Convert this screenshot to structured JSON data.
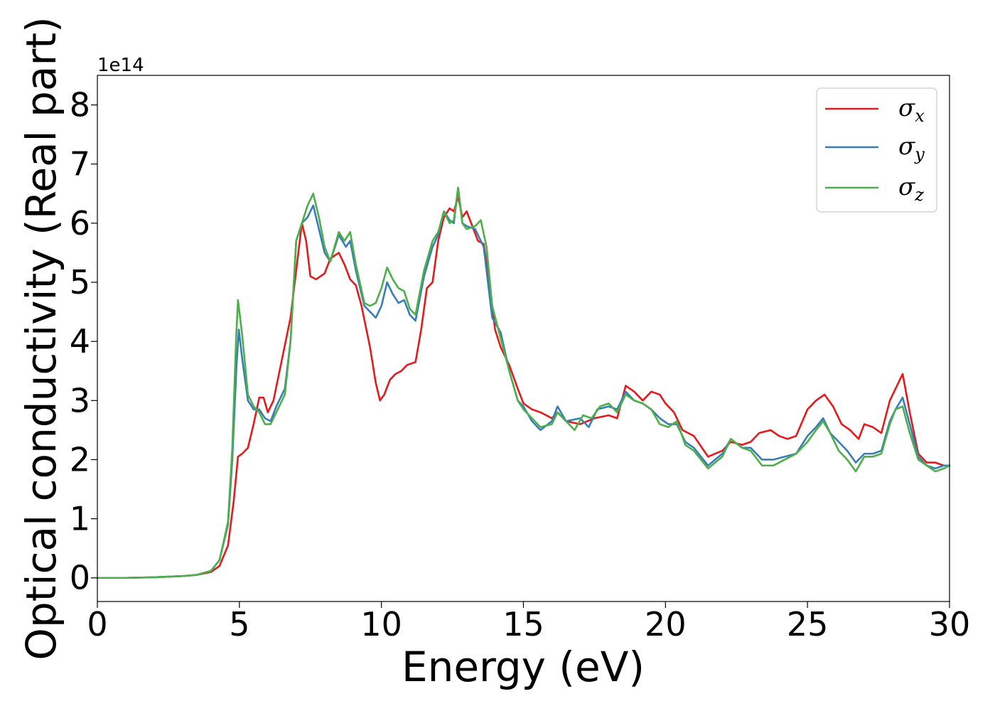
{
  "chart_data": {
    "type": "line",
    "xlabel": "Energy (eV)",
    "ylabel": "Optical conductivity (Real part)",
    "offset_text": "1e14",
    "xlim": [
      0,
      30
    ],
    "ylim": [
      -0.4,
      8.5
    ],
    "x_ticks": [
      0,
      5,
      10,
      15,
      20,
      25,
      30
    ],
    "y_ticks": [
      0,
      1,
      2,
      3,
      4,
      5,
      6,
      7,
      8
    ],
    "grid": false,
    "legend_position": "top-right",
    "series": [
      {
        "name": "σx",
        "base": "σ",
        "sub": "x",
        "color": "#e41a1c",
        "points": [
          [
            0,
            0
          ],
          [
            1,
            0
          ],
          [
            2,
            0.01
          ],
          [
            3,
            0.03
          ],
          [
            3.5,
            0.05
          ],
          [
            4,
            0.1
          ],
          [
            4.3,
            0.2
          ],
          [
            4.6,
            0.55
          ],
          [
            4.8,
            1.3
          ],
          [
            4.95,
            2.05
          ],
          [
            5.1,
            2.1
          ],
          [
            5.3,
            2.2
          ],
          [
            5.5,
            2.6
          ],
          [
            5.7,
            3.05
          ],
          [
            5.85,
            3.05
          ],
          [
            6,
            2.8
          ],
          [
            6.2,
            3.0
          ],
          [
            6.5,
            3.7
          ],
          [
            6.8,
            4.4
          ],
          [
            7.0,
            5.2
          ],
          [
            7.2,
            6.0
          ],
          [
            7.35,
            5.7
          ],
          [
            7.5,
            5.1
          ],
          [
            7.7,
            5.05
          ],
          [
            7.85,
            5.1
          ],
          [
            8.0,
            5.15
          ],
          [
            8.2,
            5.4
          ],
          [
            8.5,
            5.5
          ],
          [
            8.7,
            5.3
          ],
          [
            8.9,
            5.05
          ],
          [
            9.1,
            4.95
          ],
          [
            9.3,
            4.6
          ],
          [
            9.6,
            3.9
          ],
          [
            9.8,
            3.3
          ],
          [
            9.95,
            3.0
          ],
          [
            10.1,
            3.1
          ],
          [
            10.3,
            3.35
          ],
          [
            10.5,
            3.45
          ],
          [
            10.7,
            3.5
          ],
          [
            10.9,
            3.6
          ],
          [
            11.2,
            3.65
          ],
          [
            11.4,
            4.2
          ],
          [
            11.6,
            4.9
          ],
          [
            11.8,
            5.0
          ],
          [
            12.0,
            5.7
          ],
          [
            12.2,
            6.1
          ],
          [
            12.4,
            6.25
          ],
          [
            12.55,
            6.2
          ],
          [
            12.7,
            6.45
          ],
          [
            12.85,
            6.1
          ],
          [
            13.0,
            6.2
          ],
          [
            13.2,
            5.95
          ],
          [
            13.4,
            5.7
          ],
          [
            13.6,
            5.65
          ],
          [
            13.8,
            5.0
          ],
          [
            14.0,
            4.2
          ],
          [
            14.2,
            3.9
          ],
          [
            14.5,
            3.6
          ],
          [
            14.8,
            3.2
          ],
          [
            15.0,
            2.95
          ],
          [
            15.3,
            2.85
          ],
          [
            15.6,
            2.8
          ],
          [
            16.0,
            2.7
          ],
          [
            16.2,
            2.8
          ],
          [
            16.5,
            2.65
          ],
          [
            17.0,
            2.6
          ],
          [
            17.5,
            2.7
          ],
          [
            18.0,
            2.75
          ],
          [
            18.3,
            2.7
          ],
          [
            18.6,
            3.25
          ],
          [
            18.9,
            3.15
          ],
          [
            19.2,
            3.0
          ],
          [
            19.5,
            3.15
          ],
          [
            19.8,
            3.1
          ],
          [
            20.0,
            2.95
          ],
          [
            20.3,
            2.8
          ],
          [
            20.6,
            2.5
          ],
          [
            21.0,
            2.4
          ],
          [
            21.5,
            2.05
          ],
          [
            22.0,
            2.15
          ],
          [
            22.3,
            2.3
          ],
          [
            22.7,
            2.25
          ],
          [
            23.0,
            2.3
          ],
          [
            23.3,
            2.45
          ],
          [
            23.7,
            2.5
          ],
          [
            24.0,
            2.4
          ],
          [
            24.3,
            2.35
          ],
          [
            24.6,
            2.4
          ],
          [
            25.0,
            2.85
          ],
          [
            25.3,
            3.0
          ],
          [
            25.6,
            3.1
          ],
          [
            25.9,
            2.9
          ],
          [
            26.2,
            2.6
          ],
          [
            26.5,
            2.5
          ],
          [
            26.8,
            2.35
          ],
          [
            27.0,
            2.6
          ],
          [
            27.3,
            2.55
          ],
          [
            27.6,
            2.45
          ],
          [
            27.9,
            3.0
          ],
          [
            28.1,
            3.2
          ],
          [
            28.35,
            3.45
          ],
          [
            28.6,
            2.8
          ],
          [
            28.9,
            2.1
          ],
          [
            29.2,
            1.95
          ],
          [
            29.5,
            1.95
          ],
          [
            29.8,
            1.9
          ],
          [
            30,
            1.9
          ]
        ]
      },
      {
        "name": "σy",
        "base": "σ",
        "sub": "y",
        "color": "#377eb8",
        "points": [
          [
            0,
            0
          ],
          [
            1,
            0
          ],
          [
            2,
            0.01
          ],
          [
            3,
            0.03
          ],
          [
            3.5,
            0.05
          ],
          [
            4,
            0.12
          ],
          [
            4.3,
            0.3
          ],
          [
            4.6,
            0.9
          ],
          [
            4.75,
            2.0
          ],
          [
            4.9,
            3.6
          ],
          [
            4.98,
            4.2
          ],
          [
            5.1,
            3.7
          ],
          [
            5.3,
            3.0
          ],
          [
            5.5,
            2.85
          ],
          [
            5.7,
            2.85
          ],
          [
            5.9,
            2.7
          ],
          [
            6.1,
            2.65
          ],
          [
            6.3,
            2.9
          ],
          [
            6.6,
            3.2
          ],
          [
            6.8,
            4.0
          ],
          [
            7.0,
            5.7
          ],
          [
            7.2,
            6.0
          ],
          [
            7.4,
            6.1
          ],
          [
            7.6,
            6.3
          ],
          [
            7.8,
            5.9
          ],
          [
            8.0,
            5.5
          ],
          [
            8.2,
            5.35
          ],
          [
            8.5,
            5.8
          ],
          [
            8.75,
            5.6
          ],
          [
            8.9,
            5.7
          ],
          [
            9.1,
            5.2
          ],
          [
            9.4,
            4.6
          ],
          [
            9.6,
            4.5
          ],
          [
            9.8,
            4.4
          ],
          [
            10.0,
            4.6
          ],
          [
            10.2,
            5.0
          ],
          [
            10.4,
            4.8
          ],
          [
            10.6,
            4.65
          ],
          [
            10.8,
            4.7
          ],
          [
            11.0,
            4.45
          ],
          [
            11.2,
            4.35
          ],
          [
            11.5,
            5.1
          ],
          [
            11.8,
            5.6
          ],
          [
            12.0,
            5.8
          ],
          [
            12.2,
            6.2
          ],
          [
            12.4,
            6.05
          ],
          [
            12.55,
            6.0
          ],
          [
            12.7,
            6.6
          ],
          [
            12.85,
            6.0
          ],
          [
            13.0,
            5.95
          ],
          [
            13.3,
            5.9
          ],
          [
            13.6,
            5.6
          ],
          [
            13.9,
            4.4
          ],
          [
            14.2,
            4.15
          ],
          [
            14.5,
            3.5
          ],
          [
            14.8,
            3.0
          ],
          [
            15.0,
            2.9
          ],
          [
            15.3,
            2.65
          ],
          [
            15.6,
            2.5
          ],
          [
            16.0,
            2.65
          ],
          [
            16.2,
            2.9
          ],
          [
            16.5,
            2.65
          ],
          [
            17.0,
            2.7
          ],
          [
            17.3,
            2.55
          ],
          [
            17.6,
            2.85
          ],
          [
            18.0,
            2.9
          ],
          [
            18.3,
            2.85
          ],
          [
            18.6,
            3.15
          ],
          [
            18.9,
            3.0
          ],
          [
            19.2,
            2.95
          ],
          [
            19.5,
            2.85
          ],
          [
            19.8,
            2.7
          ],
          [
            20.1,
            2.6
          ],
          [
            20.4,
            2.6
          ],
          [
            20.7,
            2.3
          ],
          [
            21.0,
            2.2
          ],
          [
            21.5,
            1.9
          ],
          [
            22.0,
            2.1
          ],
          [
            22.3,
            2.35
          ],
          [
            22.7,
            2.2
          ],
          [
            23.0,
            2.2
          ],
          [
            23.4,
            2.0
          ],
          [
            23.8,
            2.0
          ],
          [
            24.2,
            2.05
          ],
          [
            24.6,
            2.1
          ],
          [
            25.0,
            2.4
          ],
          [
            25.3,
            2.55
          ],
          [
            25.55,
            2.7
          ],
          [
            25.8,
            2.45
          ],
          [
            26.1,
            2.3
          ],
          [
            26.4,
            2.15
          ],
          [
            26.7,
            1.95
          ],
          [
            27.0,
            2.1
          ],
          [
            27.3,
            2.1
          ],
          [
            27.6,
            2.15
          ],
          [
            27.9,
            2.65
          ],
          [
            28.1,
            2.85
          ],
          [
            28.35,
            3.05
          ],
          [
            28.6,
            2.6
          ],
          [
            28.9,
            2.05
          ],
          [
            29.2,
            1.9
          ],
          [
            29.5,
            1.85
          ],
          [
            29.8,
            1.9
          ],
          [
            30,
            1.9
          ]
        ]
      },
      {
        "name": "σz",
        "base": "σ",
        "sub": "z",
        "color": "#4daf4a",
        "points": [
          [
            0,
            0
          ],
          [
            1,
            0
          ],
          [
            2,
            0.01
          ],
          [
            3,
            0.03
          ],
          [
            3.5,
            0.05
          ],
          [
            4,
            0.12
          ],
          [
            4.3,
            0.3
          ],
          [
            4.6,
            0.95
          ],
          [
            4.75,
            2.2
          ],
          [
            4.88,
            4.0
          ],
          [
            4.95,
            4.7
          ],
          [
            5.1,
            4.1
          ],
          [
            5.3,
            3.1
          ],
          [
            5.5,
            2.9
          ],
          [
            5.7,
            2.8
          ],
          [
            5.9,
            2.6
          ],
          [
            6.1,
            2.6
          ],
          [
            6.3,
            2.8
          ],
          [
            6.6,
            3.1
          ],
          [
            6.8,
            4.0
          ],
          [
            7.0,
            5.7
          ],
          [
            7.2,
            6.0
          ],
          [
            7.4,
            6.3
          ],
          [
            7.6,
            6.5
          ],
          [
            7.8,
            6.1
          ],
          [
            8.0,
            5.6
          ],
          [
            8.2,
            5.35
          ],
          [
            8.5,
            5.85
          ],
          [
            8.7,
            5.7
          ],
          [
            8.9,
            5.85
          ],
          [
            9.1,
            5.3
          ],
          [
            9.4,
            4.65
          ],
          [
            9.6,
            4.6
          ],
          [
            9.8,
            4.65
          ],
          [
            10.0,
            4.9
          ],
          [
            10.2,
            5.25
          ],
          [
            10.4,
            5.05
          ],
          [
            10.6,
            4.9
          ],
          [
            10.8,
            4.85
          ],
          [
            11.0,
            4.55
          ],
          [
            11.2,
            4.45
          ],
          [
            11.5,
            5.2
          ],
          [
            11.8,
            5.7
          ],
          [
            12.0,
            5.85
          ],
          [
            12.2,
            6.2
          ],
          [
            12.4,
            6.0
          ],
          [
            12.55,
            6.05
          ],
          [
            12.7,
            6.6
          ],
          [
            12.85,
            6.0
          ],
          [
            13.0,
            5.9
          ],
          [
            13.3,
            5.95
          ],
          [
            13.5,
            6.05
          ],
          [
            13.7,
            5.6
          ],
          [
            13.9,
            4.6
          ],
          [
            14.2,
            4.05
          ],
          [
            14.5,
            3.5
          ],
          [
            14.8,
            3.0
          ],
          [
            15.0,
            2.85
          ],
          [
            15.3,
            2.7
          ],
          [
            15.6,
            2.55
          ],
          [
            16.0,
            2.6
          ],
          [
            16.2,
            2.8
          ],
          [
            16.5,
            2.65
          ],
          [
            16.8,
            2.5
          ],
          [
            17.1,
            2.75
          ],
          [
            17.4,
            2.7
          ],
          [
            17.7,
            2.9
          ],
          [
            18.0,
            2.95
          ],
          [
            18.3,
            2.8
          ],
          [
            18.6,
            3.1
          ],
          [
            18.9,
            3.0
          ],
          [
            19.2,
            2.95
          ],
          [
            19.5,
            2.85
          ],
          [
            19.8,
            2.6
          ],
          [
            20.1,
            2.55
          ],
          [
            20.4,
            2.65
          ],
          [
            20.7,
            2.25
          ],
          [
            21.0,
            2.15
          ],
          [
            21.5,
            1.85
          ],
          [
            22.0,
            2.05
          ],
          [
            22.3,
            2.35
          ],
          [
            22.7,
            2.2
          ],
          [
            23.0,
            2.15
          ],
          [
            23.4,
            1.9
          ],
          [
            23.8,
            1.9
          ],
          [
            24.2,
            2.0
          ],
          [
            24.6,
            2.1
          ],
          [
            25.0,
            2.3
          ],
          [
            25.3,
            2.5
          ],
          [
            25.55,
            2.65
          ],
          [
            25.8,
            2.45
          ],
          [
            26.1,
            2.15
          ],
          [
            26.4,
            2.0
          ],
          [
            26.7,
            1.8
          ],
          [
            27.0,
            2.05
          ],
          [
            27.3,
            2.05
          ],
          [
            27.6,
            2.1
          ],
          [
            27.9,
            2.6
          ],
          [
            28.1,
            2.85
          ],
          [
            28.35,
            2.9
          ],
          [
            28.6,
            2.45
          ],
          [
            28.9,
            2.0
          ],
          [
            29.2,
            1.9
          ],
          [
            29.5,
            1.8
          ],
          [
            29.8,
            1.85
          ],
          [
            30,
            1.9
          ]
        ]
      }
    ]
  }
}
